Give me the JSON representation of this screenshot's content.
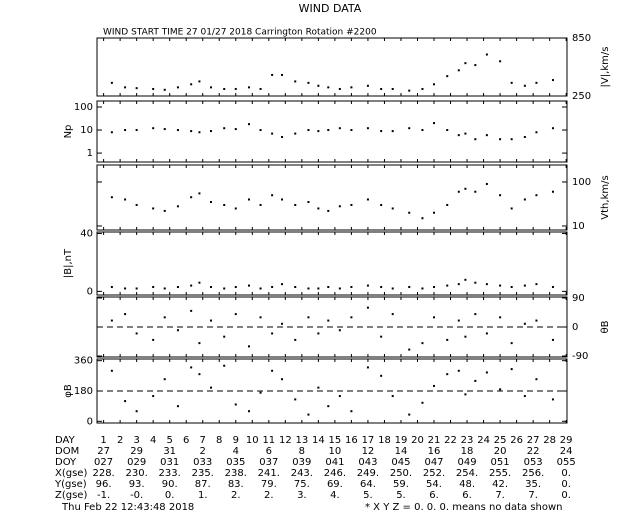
{
  "title": "WIND DATA",
  "subtitle": "WIND START TIME  27 01/27 2018 Carrington Rotation #2200",
  "x_axis": {
    "xlim": [
      0.6,
      29.05
    ],
    "xticks": [
      1,
      2,
      3,
      4,
      5,
      6,
      7,
      8,
      9,
      10,
      11,
      12,
      13,
      14,
      15,
      16,
      17,
      18,
      19,
      20,
      21,
      22,
      23,
      24,
      25,
      26,
      27,
      28,
      29
    ]
  },
  "chart_data": [
    {
      "type": "scatter",
      "ylabel": "|V|,km/s",
      "side": "right",
      "log": true,
      "ylim": [
        250,
        850
      ],
      "yticks": [
        850,
        250
      ],
      "x": [
        1.5,
        2.3,
        3,
        4,
        4.7,
        5.5,
        6.3,
        6.8,
        7.5,
        8.3,
        9,
        9.8,
        10.5,
        11.2,
        11.8,
        12.6,
        13.4,
        14,
        14.6,
        15.3,
        16,
        17,
        17.8,
        18.5,
        19.5,
        20.3,
        21,
        21.8,
        22.5,
        22.9,
        23.5,
        24.2,
        25,
        25.7,
        26.5,
        27.2,
        28.2
      ],
      "values": [
        330,
        300,
        295,
        290,
        285,
        300,
        320,
        340,
        300,
        290,
        290,
        300,
        290,
        390,
        390,
        340,
        330,
        310,
        300,
        290,
        300,
        310,
        290,
        290,
        280,
        290,
        320,
        380,
        430,
        500,
        480,
        600,
        520,
        330,
        310,
        330,
        350
      ]
    },
    {
      "type": "scatter",
      "ylabel": "Np",
      "side": "left",
      "log": true,
      "ylim": [
        0.41,
        182
      ],
      "yticks": [
        100,
        10,
        1
      ],
      "x": [
        1.5,
        2.3,
        3,
        4,
        4.7,
        5.5,
        6.3,
        6.8,
        7.5,
        8.3,
        9,
        9.8,
        10.5,
        11.2,
        11.8,
        12.6,
        13.4,
        14,
        14.6,
        15.3,
        16,
        17,
        17.8,
        18.5,
        19.5,
        20.3,
        21,
        21.8,
        22.5,
        22.9,
        23.5,
        24.2,
        25,
        25.7,
        26.5,
        27.2,
        28.2
      ],
      "values": [
        8,
        10,
        10,
        12,
        11,
        10,
        9,
        8,
        9,
        12,
        11,
        18,
        10,
        7,
        5,
        7,
        10,
        9,
        10,
        12,
        10,
        12,
        9,
        9,
        12,
        10,
        20,
        10,
        6,
        7,
        4,
        6,
        4,
        4,
        5,
        8,
        12
      ]
    },
    {
      "type": "scatter",
      "ylabel": "Vth,km/s",
      "side": "right",
      "log": true,
      "ylim": [
        8.1,
        243
      ],
      "yticks": [
        100,
        10
      ],
      "x": [
        1.5,
        2.3,
        3,
        4,
        4.7,
        5.5,
        6.3,
        6.8,
        7.5,
        8.3,
        9,
        9.8,
        10.5,
        11.2,
        11.8,
        12.6,
        13.4,
        14,
        14.6,
        15.3,
        16,
        17,
        17.8,
        18.5,
        19.5,
        20.3,
        21,
        21.8,
        22.5,
        22.9,
        23.5,
        24.2,
        25,
        25.7,
        26.5,
        27.2,
        28.2
      ],
      "values": [
        45,
        40,
        30,
        25,
        22,
        28,
        45,
        55,
        35,
        30,
        25,
        40,
        30,
        50,
        40,
        30,
        35,
        25,
        22,
        28,
        30,
        40,
        30,
        25,
        20,
        15,
        20,
        30,
        60,
        70,
        60,
        90,
        50,
        25,
        40,
        50,
        60
      ]
    },
    {
      "type": "scatter",
      "ylabel": "|B|,nT",
      "side": "left",
      "log": false,
      "ylim": [
        -2.5,
        41
      ],
      "yticks": [
        40,
        0
      ],
      "x": [
        1.5,
        2.3,
        3,
        4,
        4.7,
        5.5,
        6.3,
        6.8,
        7.5,
        8.3,
        9,
        9.8,
        10.5,
        11.2,
        11.8,
        12.6,
        13.4,
        14,
        14.6,
        15.3,
        16,
        17,
        17.8,
        18.5,
        19.5,
        20.3,
        21,
        21.8,
        22.5,
        22.9,
        23.5,
        24.2,
        25,
        25.7,
        26.5,
        27.2,
        28.2
      ],
      "values": [
        3,
        2,
        2,
        3,
        2,
        3,
        4,
        6,
        3,
        2,
        3,
        4,
        2,
        3,
        5,
        3,
        2,
        2,
        3,
        2,
        3,
        4,
        3,
        2,
        3,
        2,
        3,
        4,
        5,
        8,
        6,
        5,
        4,
        3,
        4,
        5,
        3
      ]
    },
    {
      "type": "scatter",
      "ylabel": "θB",
      "side": "right",
      "log": false,
      "ylim": [
        -93,
        93
      ],
      "yticks": [
        90,
        0,
        -90
      ],
      "reference_line": 0,
      "x": [
        1.5,
        2.3,
        3,
        4,
        4.7,
        5.5,
        6.3,
        6.8,
        7.5,
        8.3,
        9,
        9.8,
        10.5,
        11.2,
        11.8,
        12.6,
        13.4,
        14,
        14.6,
        15.3,
        16,
        17,
        17.8,
        18.5,
        19.5,
        20.3,
        21,
        21.8,
        22.5,
        22.9,
        23.5,
        24.2,
        25,
        25.7,
        26.5,
        27.2,
        28.2
      ],
      "values": [
        20,
        40,
        -20,
        -40,
        30,
        -10,
        50,
        -50,
        20,
        -30,
        40,
        -60,
        30,
        -20,
        10,
        -40,
        30,
        -20,
        20,
        -10,
        30,
        60,
        -30,
        40,
        -70,
        -50,
        30,
        -40,
        20,
        -30,
        40,
        -20,
        30,
        -50,
        10,
        20,
        -40
      ]
    },
    {
      "type": "scatter",
      "ylabel": "φB",
      "side": "left",
      "log": false,
      "ylim": [
        -10,
        370
      ],
      "yticks": [
        360,
        180,
        0
      ],
      "reference_line": 180,
      "x": [
        1.5,
        2.3,
        3,
        4,
        4.7,
        5.5,
        6.3,
        6.8,
        7.5,
        8.3,
        9,
        9.8,
        10.5,
        11.2,
        11.8,
        12.6,
        13.4,
        14,
        14.6,
        15.3,
        16,
        17,
        17.8,
        18.5,
        19.5,
        20.3,
        21,
        21.8,
        22.5,
        22.9,
        23.5,
        24.2,
        25,
        25.7,
        26.5,
        27.2,
        28.2
      ],
      "values": [
        300,
        120,
        60,
        150,
        250,
        90,
        320,
        280,
        200,
        330,
        100,
        60,
        170,
        300,
        250,
        130,
        40,
        200,
        90,
        150,
        60,
        320,
        270,
        150,
        40,
        110,
        210,
        280,
        300,
        160,
        240,
        290,
        190,
        310,
        150,
        250,
        130
      ]
    }
  ],
  "table": {
    "day_label": "DAY",
    "rows": [
      {
        "label": "DOM",
        "cells": [
          "27",
          "29",
          "31",
          "2",
          "4",
          "6",
          "8",
          "10",
          "12",
          "14",
          "16",
          "18",
          "20",
          "22",
          "24"
        ]
      },
      {
        "label": "DOY",
        "cells": [
          "027",
          "029",
          "031",
          "033",
          "035",
          "037",
          "039",
          "041",
          "043",
          "045",
          "047",
          "049",
          "051",
          "053",
          "055"
        ]
      },
      {
        "label": "X(gse)",
        "cells": [
          "228.",
          "230.",
          "233.",
          "235.",
          "238.",
          "241.",
          "243.",
          "246.",
          "249.",
          "250.",
          "252.",
          "254.",
          "255.",
          "256.",
          "0."
        ]
      },
      {
        "label": "Y(gse)",
        "cells": [
          "96.",
          "93.",
          "90.",
          "87.",
          "83.",
          "79.",
          "75.",
          "69.",
          "64.",
          "59.",
          "54.",
          "48.",
          "42.",
          "35.",
          "0."
        ]
      },
      {
        "label": "Z(gse)",
        "cells": [
          "-1.",
          "-0.",
          "0.",
          "1.",
          "2.",
          "2.",
          "3.",
          "4.",
          "5.",
          "5.",
          "6.",
          "6.",
          "7.",
          "7.",
          "0."
        ]
      }
    ]
  },
  "footer": {
    "date": "Thu Feb 22 12:43:48 2018",
    "note": "* X Y Z = 0. 0. 0. means no data shown"
  }
}
